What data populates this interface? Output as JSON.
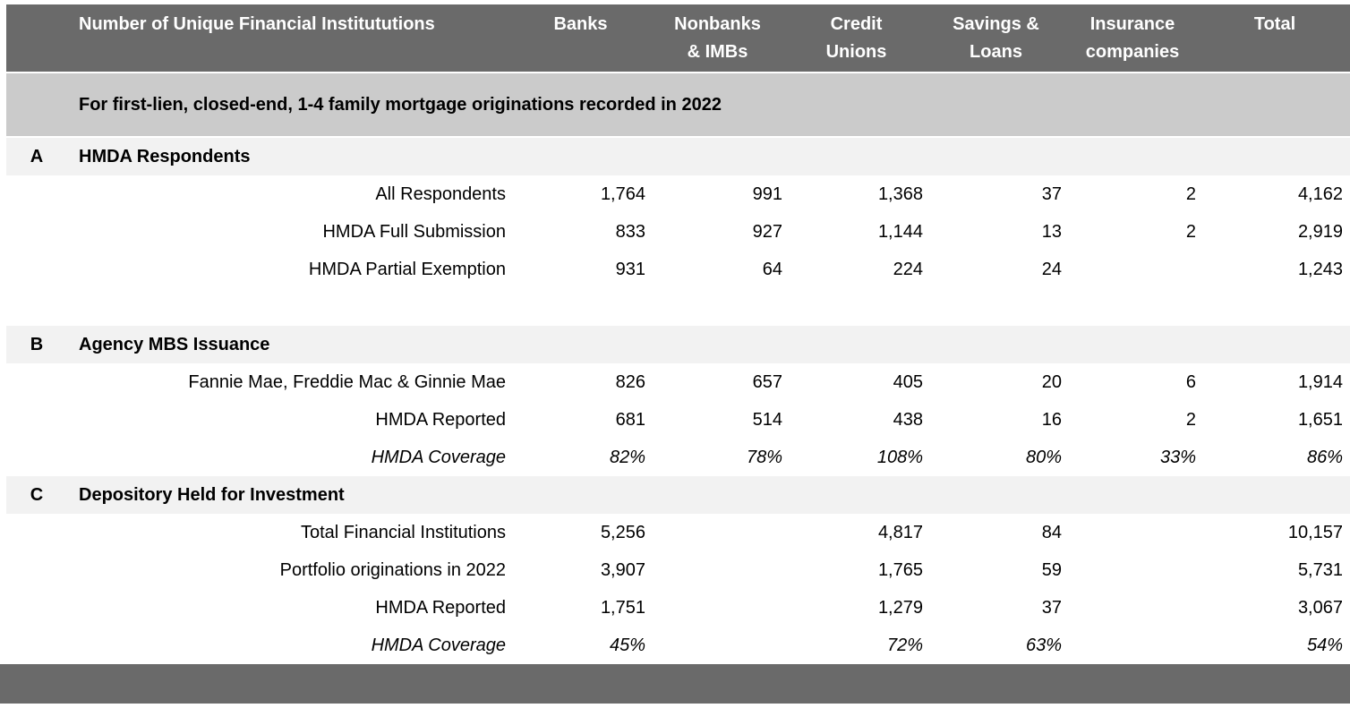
{
  "header": {
    "row_label": "Number of Unique Financial Institututions",
    "columns": [
      "Banks",
      "Nonbanks\n& IMBs",
      "Credit\nUnions",
      "Savings &\nLoans",
      "Insurance\ncompanies",
      "Total"
    ]
  },
  "subtitle": "For first-lien, closed-end, 1-4 family mortgage originations recorded in 2022",
  "sections": [
    {
      "letter": "A",
      "title": "HMDA Respondents",
      "gap_after": true,
      "rows": [
        {
          "label": "All Respondents",
          "italic": false,
          "values": [
            "1,764",
            "991",
            "1,368",
            "37",
            "2",
            "4,162"
          ]
        },
        {
          "label": "HMDA Full Submission",
          "italic": false,
          "values": [
            "833",
            "927",
            "1,144",
            "13",
            "2",
            "2,919"
          ]
        },
        {
          "label": "HMDA Partial Exemption",
          "italic": false,
          "values": [
            "931",
            "64",
            "224",
            "24",
            "",
            "1,243"
          ]
        }
      ]
    },
    {
      "letter": "B",
      "title": "Agency MBS Issuance",
      "gap_after": false,
      "rows": [
        {
          "label": "Fannie Mae, Freddie Mac & Ginnie Mae",
          "italic": false,
          "values": [
            "826",
            "657",
            "405",
            "20",
            "6",
            "1,914"
          ]
        },
        {
          "label": "HMDA Reported",
          "italic": false,
          "values": [
            "681",
            "514",
            "438",
            "16",
            "2",
            "1,651"
          ]
        },
        {
          "label": "HMDA Coverage",
          "italic": true,
          "values": [
            "82%",
            "78%",
            "108%",
            "80%",
            "33%",
            "86%"
          ]
        }
      ]
    },
    {
      "letter": "C",
      "title": "Depository Held for Investment",
      "gap_after": false,
      "rows": [
        {
          "label": "Total Financial Institutions",
          "italic": false,
          "values": [
            "5,256",
            "",
            "4,817",
            "84",
            "",
            "10,157"
          ]
        },
        {
          "label": "Portfolio originations in 2022",
          "italic": false,
          "values": [
            "3,907",
            "",
            "1,765",
            "59",
            "",
            "5,731"
          ]
        },
        {
          "label": "HMDA Reported",
          "italic": false,
          "values": [
            "1,751",
            "",
            "1,279",
            "37",
            "",
            "3,067"
          ]
        },
        {
          "label": "HMDA Coverage",
          "italic": true,
          "values": [
            "45%",
            "",
            "72%",
            "63%",
            "",
            "54%"
          ]
        }
      ]
    }
  ],
  "colors": {
    "header_bg": "#6a6a6a",
    "subtitle_bg": "#cbcbcb",
    "section_bg": "#f2f2f2",
    "header_text": "#ffffff",
    "body_text": "#000000"
  }
}
